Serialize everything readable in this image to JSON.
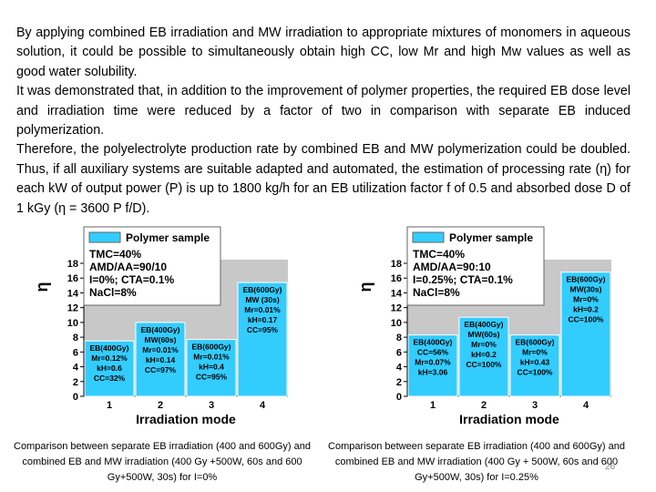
{
  "paragraphs": [
    "By applying combined EB irradiation and MW irradiation to appropriate mixtures of monomers in aqueous solution, it could be possible to simultaneously obtain high CC, low Mr and high Mw values as well as good water solubility.",
    "It was demonstrated that, in addition to the improvement of polymer properties, the required EB dose level and irradiation time were reduced by a factor of two in comparison with separate EB induced polymerization.",
    "Therefore, the polyelectrolyte production rate by combined EB and MW polymerization could be doubled. Thus, if all auxiliary systems are suitable adapted and automated, the estimation of processing rate (η) for each kW of output power (P) is up to 1800 kg/h for an EB utilization factor f of 0.5 and absorbed dose D of 1 kGy (η = 3600 P f/D)."
  ],
  "figures": [
    {
      "chart_data": {
        "type": "bar",
        "y_label": "η",
        "x_label": "Irradiation mode",
        "categories": [
          "1",
          "2",
          "3",
          "4"
        ],
        "values": [
          7.5,
          10,
          7.7,
          15.4
        ],
        "color": "#33ccff",
        "ylim": [
          0,
          18
        ],
        "yticks": [
          0,
          2,
          4,
          6,
          8,
          10,
          12,
          14,
          16,
          18
        ],
        "legend_title": "Polymer sample",
        "legend_lines": [
          "TMC=40%",
          "AMD/AA=90/10",
          "I=0%; CTA=0.1%",
          "NaCl=8%"
        ],
        "bar_labels": [
          [
            "EB(400Gy)",
            "Mr=0.12%",
            "kH=0.6",
            "CC=32%"
          ],
          [
            "EB(400Gy)",
            "MW(60s)",
            "Mr=0.01%",
            "kH=0.14",
            "CC=97%"
          ],
          [
            "EB(600Gy)",
            "Mr=0.01%",
            "kH=0.4",
            "CC=95%"
          ],
          [
            "EB(600Gy)",
            "MW (30s)",
            "Mr=0.01%",
            "kH=0.17",
            "CC=95%"
          ]
        ]
      },
      "caption": "Comparison between separate EB irradiation (400 and 600Gy) and combined EB and MW irradiation (400 Gy +500W, 60s and 600 Gy+500W, 30s) for I=0%"
    },
    {
      "chart_data": {
        "type": "bar",
        "y_label": "η",
        "x_label": "Irradiation mode",
        "categories": [
          "1",
          "2",
          "3",
          "4"
        ],
        "values": [
          8.3,
          10.7,
          8.3,
          16.8
        ],
        "color": "#33ccff",
        "ylim": [
          0,
          18
        ],
        "yticks": [
          0,
          2,
          4,
          6,
          8,
          10,
          12,
          14,
          16,
          18
        ],
        "legend_title": "Polymer sample",
        "legend_lines": [
          "TMC=40%",
          "AMD/AA=90:10",
          "I=0.25%; CTA=0.1%",
          "NaCl=8%"
        ],
        "bar_labels": [
          [
            "EB(400Gy)",
            "CC=56%",
            "Mr=0.07%",
            "kH=3.06"
          ],
          [
            "EB(400Gy)",
            "MW(60s)",
            "Mr=0%",
            "kH=0.2",
            "CC=100%"
          ],
          [
            "EB(600Gy)",
            "Mr=0%",
            "kH=0.43",
            "CC=100%"
          ],
          [
            "EB(600Gy)",
            "MW(30s)",
            "Mr=0%",
            "kH=0.2",
            "CC=100%"
          ]
        ]
      },
      "caption": "Comparison between separate EB irradiation (400 and 600Gy) and combined EB and MW irradiation (400 Gy + 500W, 60s and 600 Gy+500W, 30s) for I=0.25%"
    }
  ],
  "page_number": "26"
}
